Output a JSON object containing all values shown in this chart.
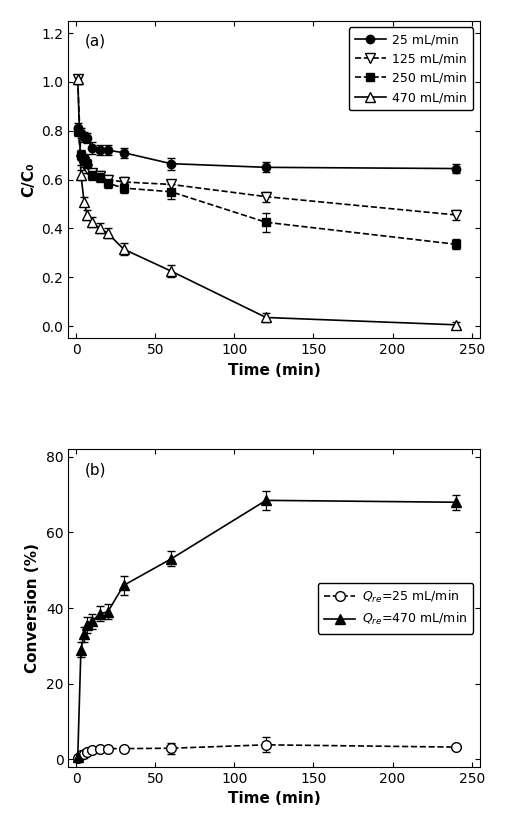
{
  "panel_a": {
    "label": "(a)",
    "xlabel": "Time (min)",
    "ylabel": "C/C₀",
    "ylim": [
      -0.05,
      1.25
    ],
    "xlim": [
      -5,
      255
    ],
    "yticks": [
      0.0,
      0.2,
      0.4,
      0.6,
      0.8,
      1.0,
      1.2
    ],
    "xticks": [
      0,
      50,
      100,
      150,
      200,
      250
    ],
    "series": [
      {
        "label": "25 mL/min",
        "linestyle": "-",
        "marker": "o",
        "fillstyle": "full",
        "ms": 6,
        "x": [
          1,
          3,
          5,
          7,
          10,
          15,
          20,
          30,
          60,
          120,
          240
        ],
        "y": [
          0.81,
          0.79,
          0.775,
          0.77,
          0.73,
          0.72,
          0.72,
          0.71,
          0.665,
          0.65,
          0.645
        ],
        "yerr": [
          0.02,
          0.02,
          0.02,
          0.02,
          0.025,
          0.02,
          0.02,
          0.02,
          0.025,
          0.02,
          0.02
        ]
      },
      {
        "label": "125 mL/min",
        "linestyle": "--",
        "marker": "v",
        "fillstyle": "none",
        "ms": 7,
        "x": [
          1,
          3,
          5,
          7,
          10,
          15,
          20,
          30,
          60,
          120,
          240
        ],
        "y": [
          1.01,
          0.68,
          0.67,
          0.645,
          0.625,
          0.615,
          0.6,
          0.59,
          0.58,
          0.53,
          0.455
        ],
        "yerr": [
          0.02,
          0.02,
          0.02,
          0.02,
          0.02,
          0.02,
          0.02,
          0.02,
          0.02,
          0.02,
          0.02
        ]
      },
      {
        "label": "250 mL/min",
        "linestyle": "--",
        "marker": "s",
        "fillstyle": "full",
        "ms": 6,
        "x": [
          1,
          3,
          5,
          7,
          10,
          15,
          20,
          30,
          60,
          120,
          240
        ],
        "y": [
          0.8,
          0.7,
          0.685,
          0.665,
          0.62,
          0.61,
          0.585,
          0.565,
          0.55,
          0.425,
          0.335
        ],
        "yerr": [
          0.02,
          0.02,
          0.02,
          0.02,
          0.02,
          0.02,
          0.02,
          0.02,
          0.03,
          0.04,
          0.02
        ]
      },
      {
        "label": "470 mL/min",
        "linestyle": "-",
        "marker": "^",
        "fillstyle": "none",
        "ms": 7,
        "x": [
          1,
          3,
          5,
          7,
          10,
          15,
          20,
          30,
          60,
          120,
          240
        ],
        "y": [
          1.01,
          0.62,
          0.51,
          0.455,
          0.425,
          0.4,
          0.38,
          0.315,
          0.225,
          0.035,
          0.005
        ],
        "yerr": [
          0.02,
          0.02,
          0.02,
          0.02,
          0.02,
          0.02,
          0.02,
          0.025,
          0.025,
          0.02,
          0.01
        ]
      }
    ]
  },
  "panel_b": {
    "label": "(b)",
    "xlabel": "Time (min)",
    "ylabel": "Conversion (%)",
    "ylim": [
      -2,
      82
    ],
    "xlim": [
      -5,
      255
    ],
    "yticks": [
      0,
      20,
      40,
      60,
      80
    ],
    "xticks": [
      0,
      50,
      100,
      150,
      200,
      250
    ],
    "series": [
      {
        "label": "$Q_{re}$=25 mL/min",
        "linestyle": "--",
        "marker": "o",
        "fillstyle": "none",
        "ms": 7,
        "x": [
          1,
          3,
          5,
          7,
          10,
          15,
          20,
          30,
          60,
          120,
          240
        ],
        "y": [
          0.3,
          1.0,
          1.5,
          2.0,
          2.5,
          2.8,
          2.8,
          2.8,
          2.9,
          3.8,
          3.2
        ],
        "yerr": [
          0.3,
          0.5,
          0.5,
          0.5,
          0.5,
          0.5,
          0.5,
          0.5,
          1.5,
          2.0,
          0.5
        ]
      },
      {
        "label": "$Q_{re}$=470 mL/min",
        "linestyle": "-",
        "marker": "^",
        "fillstyle": "full",
        "ms": 7,
        "x": [
          1,
          3,
          5,
          7,
          10,
          15,
          20,
          30,
          60,
          120,
          240
        ],
        "y": [
          0.5,
          29.0,
          33.0,
          35.5,
          36.5,
          38.5,
          39.0,
          46.0,
          53.0,
          68.5,
          68.0
        ],
        "yerr": [
          0.5,
          2.0,
          2.0,
          2.0,
          2.0,
          2.0,
          2.0,
          2.5,
          2.0,
          2.5,
          2.0
        ]
      }
    ]
  }
}
